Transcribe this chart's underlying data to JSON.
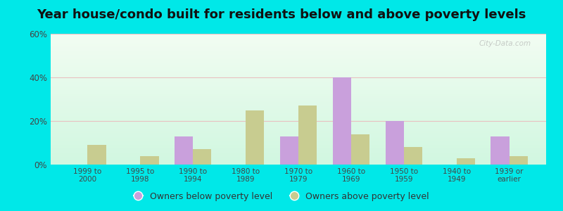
{
  "title": "Year house/condo built for residents below and above poverty levels",
  "categories": [
    "1999 to\n2000",
    "1995 to\n1998",
    "1990 to\n1994",
    "1980 to\n1989",
    "1970 to\n1979",
    "1960 to\n1969",
    "1950 to\n1959",
    "1940 to\n1949",
    "1939 or\nearlier"
  ],
  "below_poverty": [
    0,
    0,
    13,
    0,
    13,
    40,
    20,
    0,
    13
  ],
  "above_poverty": [
    9,
    4,
    7,
    25,
    27,
    14,
    8,
    3,
    4
  ],
  "below_color": "#c9a0dc",
  "above_color": "#c8cc90",
  "ylim": [
    0,
    60
  ],
  "yticks": [
    0,
    20,
    40,
    60
  ],
  "ytick_labels": [
    "0%",
    "20%",
    "40%",
    "60%"
  ],
  "outer_bg": "#00e8e8",
  "title_fontsize": 13,
  "legend_below_label": "Owners below poverty level",
  "legend_above_label": "Owners above poverty level",
  "bar_width": 0.35,
  "watermark": "City-Data.com"
}
